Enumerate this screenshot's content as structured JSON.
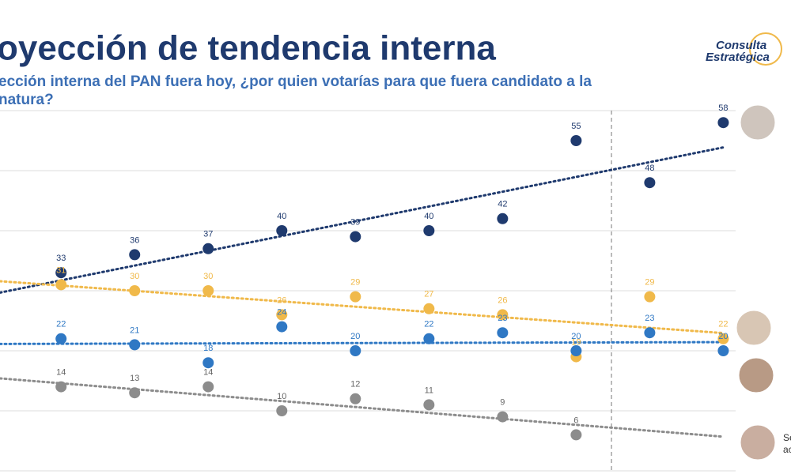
{
  "chart_data": {
    "type": "scatter",
    "title": "oyección de tendencia interna",
    "subtitle": [
      "ección interna del PAN fuera hoy, ¿por quien votarías para que fuera candidato a la",
      "natura?"
    ],
    "logo": [
      "Consulta",
      "Estratégica"
    ],
    "side_labels": [
      "Se",
      "ac"
    ],
    "x": [
      1,
      2,
      3,
      4,
      5,
      6,
      7,
      8,
      9,
      10
    ],
    "xlim": [
      0.17,
      10.92
    ],
    "ylim": [
      0,
      60
    ],
    "yticks": [
      0,
      10,
      20,
      30,
      40,
      50,
      60
    ],
    "grid": true,
    "trendline": true,
    "divider_x": 8.48,
    "series": [
      {
        "color": "#1f3a6e",
        "values": [
          33,
          36,
          37,
          40,
          39,
          40,
          42,
          55,
          48,
          58
        ]
      },
      {
        "color": "#f0b94a",
        "values": [
          31,
          30,
          30,
          26,
          29,
          27,
          26,
          19,
          29,
          22
        ]
      },
      {
        "color": "#2f78c4",
        "values": [
          22,
          21,
          18,
          24,
          20,
          22,
          23,
          20,
          23,
          20
        ]
      },
      {
        "color": "#8c8c8c",
        "values": [
          14,
          13,
          14,
          10,
          12,
          11,
          9,
          6,
          null,
          null
        ]
      }
    ]
  }
}
